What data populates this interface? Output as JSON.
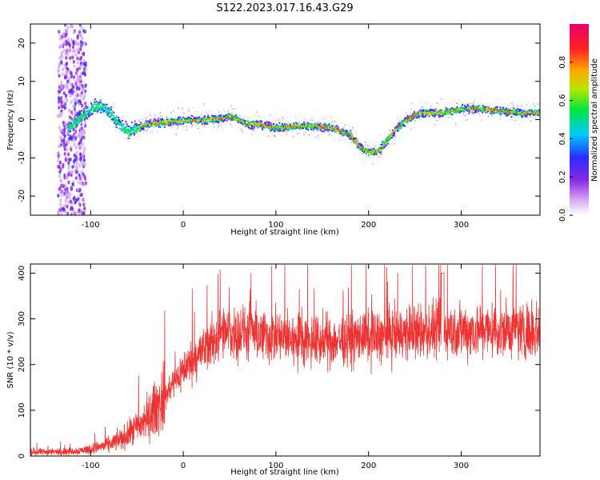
{
  "title": "S122.2023.017.16.43.G29",
  "chart_data": [
    {
      "type": "heatmap",
      "xlabel": "Height of straight line (km)",
      "ylabel": "Frequency (Hz)",
      "xlim": [
        -165,
        385
      ],
      "ylim": [
        -25,
        25
      ],
      "x_ticks": [
        -100,
        0,
        100,
        200,
        300
      ],
      "y_ticks": [
        -20,
        -10,
        0,
        10,
        20
      ],
      "colorbar": {
        "label": "Normalized spectral amplitude",
        "range": [
          0,
          1
        ],
        "ticks": [
          "0.0",
          "0.2",
          "0.4",
          "0.6",
          "0.8"
        ],
        "colors": [
          "#ffffff",
          "#d9a6f5",
          "#8a2be2",
          "#2b2bff",
          "#00c8ff",
          "#00e640",
          "#b8e600",
          "#ffa500",
          "#ff2020",
          "#e8006e"
        ]
      },
      "ridge": {
        "x": [
          -125,
          -110,
          -100,
          -90,
          -80,
          -70,
          -60,
          -50,
          -40,
          -20,
          0,
          20,
          40,
          50,
          60,
          70,
          80,
          100,
          120,
          140,
          160,
          170,
          180,
          190,
          200,
          210,
          220,
          230,
          240,
          250,
          260,
          280,
          300,
          320,
          340,
          360,
          385
        ],
        "y": [
          -2,
          1,
          3,
          4,
          2,
          -1,
          -3,
          -2,
          -1,
          -0.5,
          0,
          0,
          0.5,
          1,
          0,
          -1,
          -1,
          -2,
          -1.5,
          -1.5,
          -2,
          -3,
          -4,
          -7,
          -8.5,
          -8,
          -5,
          -2,
          0,
          1.5,
          2,
          2,
          3,
          3,
          2.5,
          2,
          2
        ]
      }
    },
    {
      "type": "line",
      "xlabel": "Height of straight line (km)",
      "ylabel": "SNR (10 * v/v)",
      "xlim": [
        -165,
        385
      ],
      "ylim": [
        0,
        420
      ],
      "x_ticks": [
        -100,
        0,
        100,
        200,
        300
      ],
      "y_ticks": [
        0,
        100,
        200,
        300,
        400
      ],
      "color": "#ee3333",
      "envelope": {
        "x": [
          -165,
          -120,
          -100,
          -80,
          -60,
          -40,
          -20,
          0,
          20,
          40,
          60,
          100,
          150,
          200,
          250,
          300,
          350,
          385
        ],
        "y": [
          8,
          10,
          15,
          25,
          45,
          80,
          130,
          190,
          230,
          265,
          270,
          260,
          250,
          260,
          270,
          275,
          275,
          275
        ]
      }
    }
  ]
}
